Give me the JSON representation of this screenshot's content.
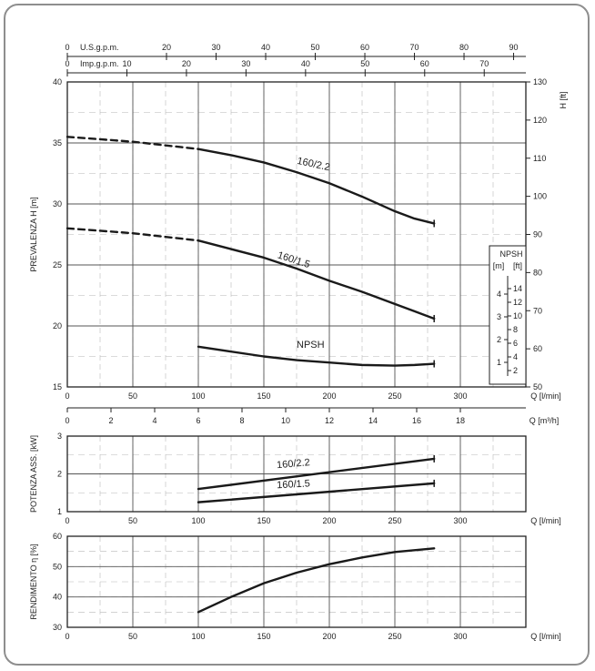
{
  "chart_data": [
    {
      "type": "line",
      "panel": "head",
      "ylabel_left": "PREVALENZA   H  [m]",
      "ylabel_right": "H  [ft]",
      "xlabel": "Q  [l/min]",
      "xlim": [
        0,
        350
      ],
      "ylim": [
        15,
        40
      ],
      "y_right_lim": [
        50,
        130
      ],
      "x_ticks": [
        0,
        50,
        100,
        150,
        200,
        250,
        300
      ],
      "y_ticks": [
        15,
        20,
        25,
        30,
        35,
        40
      ],
      "y_right_ticks": [
        50,
        60,
        70,
        80,
        90,
        100,
        110,
        120,
        130
      ],
      "top_axes": [
        {
          "label": "U.S.g.p.m.",
          "lim": [
            0,
            90
          ],
          "ticks": [
            0,
            20,
            30,
            40,
            50,
            60,
            70,
            80,
            90
          ],
          "tick_labels": [
            "0",
            "20",
            "30",
            "40",
            "50",
            "60",
            "70",
            "80",
            "90"
          ]
        },
        {
          "label": "Imp.g.p.m.",
          "lim": [
            0,
            75
          ],
          "ticks": [
            0,
            10,
            20,
            30,
            40,
            50,
            60,
            70
          ],
          "tick_labels": [
            "0",
            "10",
            "20",
            "30",
            "40",
            "50",
            "60",
            "70"
          ]
        }
      ],
      "series": [
        {
          "name": "160/2.2",
          "x": [
            0,
            25,
            50,
            75,
            100,
            125,
            150,
            175,
            200,
            225,
            250,
            265,
            280
          ],
          "y": [
            35.5,
            35.3,
            35.1,
            34.8,
            34.5,
            34.0,
            33.4,
            32.6,
            31.7,
            30.6,
            29.4,
            28.8,
            28.4
          ],
          "dashed_until": 100
        },
        {
          "name": "160/1.5",
          "x": [
            0,
            25,
            50,
            75,
            100,
            125,
            150,
            175,
            200,
            225,
            250,
            265,
            280
          ],
          "y": [
            28.0,
            27.8,
            27.6,
            27.3,
            27.0,
            26.3,
            25.6,
            24.7,
            23.7,
            22.8,
            21.8,
            21.2,
            20.6
          ],
          "dashed_until": 100
        },
        {
          "name": "NPSH",
          "x": [
            100,
            125,
            150,
            175,
            200,
            225,
            250,
            265,
            280
          ],
          "y": [
            18.3,
            17.9,
            17.5,
            17.2,
            17.0,
            16.8,
            16.75,
            16.8,
            16.9
          ]
        }
      ],
      "npsh_scale": {
        "title": "NPSH",
        "m_label": "[m]",
        "ft_label": "[ft]",
        "m_ticks": [
          "1",
          "2",
          "3",
          "4"
        ],
        "ft_ticks": [
          "2",
          "4",
          "6",
          "8",
          "10",
          "12",
          "14"
        ]
      },
      "grid": true
    },
    {
      "type": "line",
      "panel": "power",
      "ylabel": "POTENZA ASS. [kW]",
      "xlabel": "Q  [l/min]",
      "top_axis": {
        "label": "Q  [m³/h]",
        "lim": [
          0,
          21
        ],
        "ticks": [
          0,
          2,
          4,
          6,
          8,
          10,
          12,
          14,
          16,
          18
        ],
        "tick_labels": [
          "0",
          "2",
          "4",
          "6",
          "8",
          "10",
          "12",
          "14",
          "16",
          "18"
        ]
      },
      "xlim": [
        0,
        350
      ],
      "ylim": [
        1,
        3
      ],
      "x_ticks": [
        0,
        50,
        100,
        150,
        200,
        250,
        300
      ],
      "y_ticks": [
        1,
        2,
        3
      ],
      "series": [
        {
          "name": "160/2.2",
          "x": [
            100,
            280
          ],
          "y": [
            1.6,
            2.4
          ]
        },
        {
          "name": "160/1.5",
          "x": [
            100,
            280
          ],
          "y": [
            1.25,
            1.75
          ]
        }
      ],
      "grid": true
    },
    {
      "type": "line",
      "panel": "efficiency",
      "ylabel": "RENDIMENTO  η  [%]",
      "xlabel": "Q  [l/min]",
      "xlim": [
        0,
        350
      ],
      "ylim": [
        30,
        60
      ],
      "x_ticks": [
        0,
        50,
        100,
        150,
        200,
        250,
        300
      ],
      "y_ticks": [
        30,
        40,
        50,
        60
      ],
      "series": [
        {
          "x": [
            100,
            125,
            150,
            175,
            200,
            225,
            250,
            280
          ],
          "y": [
            35,
            40,
            44.5,
            48,
            50.8,
            53,
            54.8,
            56
          ]
        }
      ],
      "grid": true
    }
  ]
}
